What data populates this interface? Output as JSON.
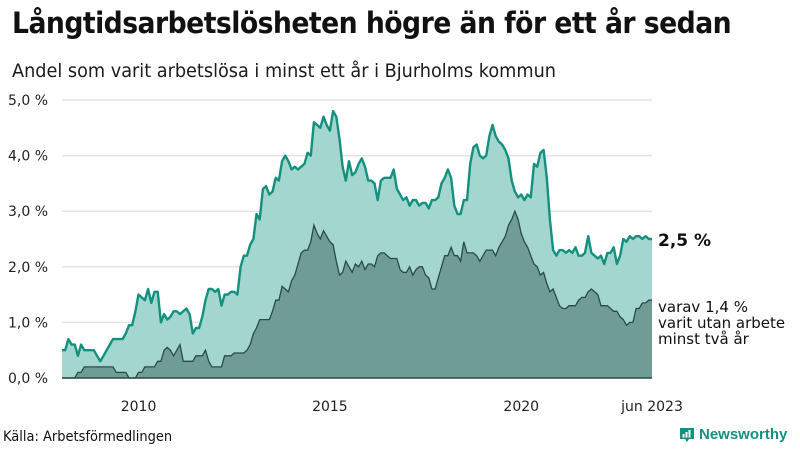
{
  "header": {
    "title": "Långtidsarbetslösheten högre än för ett år sedan",
    "subtitle": "Andel som varit arbetslösa i minst ett år i Bjurholms kommun"
  },
  "labels": {
    "end_value": "2,5 %",
    "sub_value": "varav 1,4 %\nvarit utan arbete\nminst två år"
  },
  "footer": {
    "source": "Källa: Arbetsförmedlingen",
    "brand": "Newsworthy",
    "brand_icon": "bar-chart-speech-icon"
  },
  "colors": {
    "line_main": "#13907e",
    "fill_main": "#a4d6d0",
    "line_sub": "#2b4a45",
    "fill_sub": "#6f9d96",
    "grid": "#e3e3e3"
  },
  "chart_data": {
    "type": "area",
    "title": "Långtidsarbetslösheten högre än för ett år sedan",
    "subtitle": "Andel som varit arbetslösa i minst ett år i Bjurholms kommun",
    "xlabel": "",
    "ylabel": "",
    "ylim": [
      0,
      5
    ],
    "y_ticks": [
      "0,0 %",
      "1,0 %",
      "2,0 %",
      "3,0 %",
      "4,0 %",
      "5,0 %"
    ],
    "x_ticks": [
      {
        "label": "2010",
        "index": 24
      },
      {
        "label": "2015",
        "index": 84
      },
      {
        "label": "2020",
        "index": 144
      },
      {
        "label": "jun 2023",
        "index": 185
      }
    ],
    "x_start": "2008-01",
    "x_end": "2023-06",
    "frequency": "monthly",
    "grid": true,
    "legend": "direct labels at right end",
    "series": [
      {
        "name": "Arbetslösa minst ett år",
        "end_label": "2,5 %",
        "values": [
          0.5,
          0.5,
          0.7,
          0.6,
          0.6,
          0.4,
          0.6,
          0.5,
          0.5,
          0.5,
          0.5,
          0.4,
          0.3,
          0.4,
          0.5,
          0.6,
          0.7,
          0.7,
          0.7,
          0.7,
          0.8,
          0.95,
          0.95,
          1.2,
          1.5,
          1.45,
          1.4,
          1.6,
          1.35,
          1.55,
          1.55,
          1.0,
          1.15,
          1.05,
          1.1,
          1.2,
          1.2,
          1.15,
          1.2,
          1.25,
          1.15,
          0.8,
          0.9,
          0.9,
          1.1,
          1.4,
          1.6,
          1.6,
          1.55,
          1.6,
          1.3,
          1.5,
          1.5,
          1.55,
          1.55,
          1.5,
          2.0,
          2.2,
          2.2,
          2.4,
          2.5,
          2.95,
          2.85,
          3.4,
          3.45,
          3.3,
          3.35,
          3.6,
          3.55,
          3.9,
          4.0,
          3.9,
          3.75,
          3.8,
          3.75,
          3.8,
          3.85,
          4.05,
          4.0,
          4.6,
          4.55,
          4.5,
          4.7,
          4.55,
          4.45,
          4.8,
          4.7,
          4.3,
          3.8,
          3.55,
          3.9,
          3.65,
          3.7,
          3.85,
          3.95,
          3.8,
          3.55,
          3.55,
          3.5,
          3.2,
          3.55,
          3.6,
          3.6,
          3.6,
          3.75,
          3.4,
          3.3,
          3.2,
          3.25,
          3.1,
          3.2,
          3.2,
          3.1,
          3.15,
          3.15,
          3.05,
          3.2,
          3.2,
          3.25,
          3.5,
          3.6,
          3.75,
          3.6,
          3.1,
          2.95,
          2.95,
          3.2,
          3.2,
          3.85,
          4.15,
          4.2,
          4.0,
          3.95,
          4.0,
          4.35,
          4.55,
          4.35,
          4.25,
          4.2,
          4.1,
          3.95,
          3.55,
          3.35,
          3.25,
          3.3,
          3.2,
          3.3,
          3.25,
          3.85,
          3.8,
          4.05,
          4.1,
          3.6,
          2.85,
          2.3,
          2.2,
          2.3,
          2.3,
          2.25,
          2.3,
          2.25,
          2.35,
          2.2,
          2.2,
          2.25,
          2.55,
          2.25,
          2.2,
          2.15,
          2.2,
          2.05,
          2.25,
          2.25,
          2.35,
          2.05,
          2.2,
          2.5,
          2.45,
          2.55,
          2.5,
          2.55,
          2.55,
          2.5,
          2.55,
          2.5,
          2.5
        ]
      },
      {
        "name": "varav utan arbete minst två år",
        "end_label": "1,4 %",
        "values": [
          0.0,
          0.0,
          0.0,
          0.0,
          0.0,
          0.1,
          0.1,
          0.2,
          0.2,
          0.2,
          0.2,
          0.2,
          0.2,
          0.2,
          0.2,
          0.2,
          0.2,
          0.1,
          0.1,
          0.1,
          0.1,
          0.0,
          0.0,
          0.0,
          0.1,
          0.1,
          0.2,
          0.2,
          0.2,
          0.2,
          0.3,
          0.3,
          0.5,
          0.55,
          0.5,
          0.4,
          0.5,
          0.6,
          0.3,
          0.3,
          0.3,
          0.3,
          0.4,
          0.4,
          0.4,
          0.5,
          0.3,
          0.2,
          0.2,
          0.2,
          0.2,
          0.4,
          0.4,
          0.4,
          0.45,
          0.45,
          0.45,
          0.45,
          0.5,
          0.6,
          0.8,
          0.9,
          1.05,
          1.05,
          1.05,
          1.05,
          1.2,
          1.4,
          1.4,
          1.65,
          1.6,
          1.55,
          1.75,
          1.85,
          2.05,
          2.25,
          2.3,
          2.3,
          2.45,
          2.75,
          2.6,
          2.5,
          2.65,
          2.55,
          2.45,
          2.4,
          2.1,
          1.85,
          1.9,
          2.1,
          2.0,
          1.9,
          2.05,
          2.0,
          2.1,
          1.95,
          2.05,
          2.05,
          2.0,
          2.2,
          2.25,
          2.25,
          2.2,
          2.15,
          2.15,
          2.15,
          1.95,
          1.9,
          1.9,
          2.0,
          1.85,
          1.95,
          2.0,
          2.0,
          1.85,
          1.8,
          1.6,
          1.6,
          1.8,
          2.0,
          2.2,
          2.2,
          2.35,
          2.2,
          2.2,
          2.1,
          2.45,
          2.25,
          2.25,
          2.25,
          2.2,
          2.1,
          2.2,
          2.3,
          2.3,
          2.3,
          2.2,
          2.35,
          2.45,
          2.55,
          2.75,
          2.85,
          3.0,
          2.85,
          2.6,
          2.45,
          2.35,
          2.2,
          2.05,
          2.0,
          1.85,
          1.9,
          1.7,
          1.55,
          1.6,
          1.45,
          1.3,
          1.25,
          1.25,
          1.3,
          1.3,
          1.3,
          1.4,
          1.45,
          1.45,
          1.55,
          1.6,
          1.55,
          1.5,
          1.3,
          1.3,
          1.3,
          1.25,
          1.2,
          1.2,
          1.1,
          1.05,
          0.95,
          1.0,
          1.0,
          1.25,
          1.25,
          1.35,
          1.35,
          1.4,
          1.4
        ]
      }
    ]
  }
}
